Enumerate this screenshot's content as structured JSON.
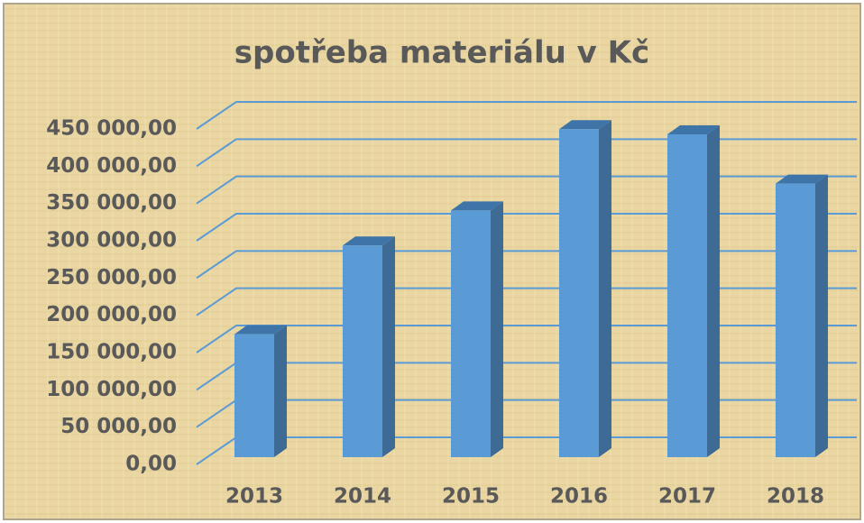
{
  "chart_data": {
    "type": "bar3d",
    "title": "spotřeba materiálu v Kč",
    "categories": [
      "2013",
      "2014",
      "2015",
      "2016",
      "2017",
      "2018"
    ],
    "values": [
      165000,
      284000,
      331000,
      440000,
      433000,
      367000
    ],
    "color": "#5b9bd5",
    "ylim": [
      0,
      450000
    ],
    "yticks": [
      {
        "value": 0,
        "label": "0,00"
      },
      {
        "value": 50000,
        "label": "50 000,00"
      },
      {
        "value": 100000,
        "label": "100 000,00"
      },
      {
        "value": 150000,
        "label": "150 000,00"
      },
      {
        "value": 200000,
        "label": "200 000,00"
      },
      {
        "value": 250000,
        "label": "250 000,00"
      },
      {
        "value": 300000,
        "label": "300 000,00"
      },
      {
        "value": 350000,
        "label": "350 000,00"
      },
      {
        "value": 400000,
        "label": "400 000,00"
      },
      {
        "value": 450000,
        "label": "450 000,00"
      }
    ],
    "grid": true
  }
}
